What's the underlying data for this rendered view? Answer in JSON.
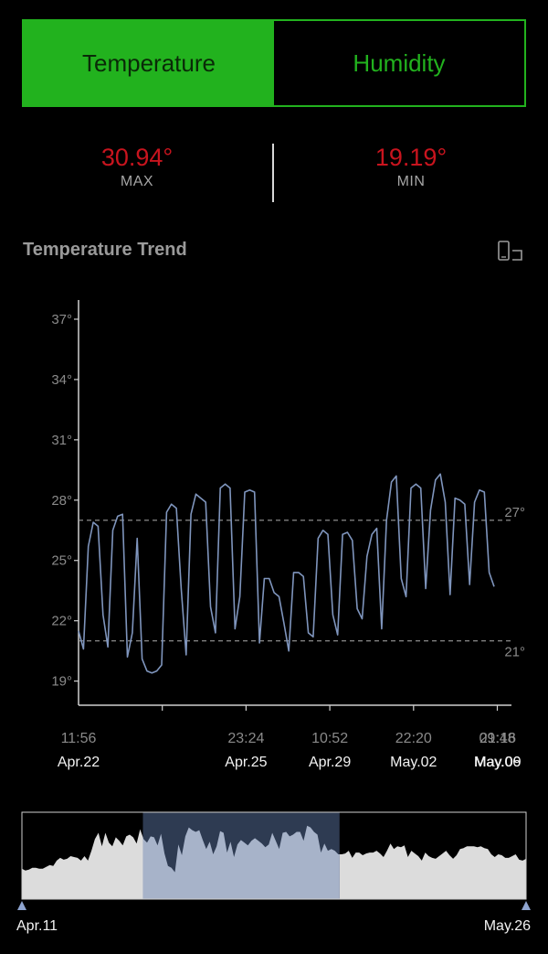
{
  "tabs": [
    {
      "label": "Temperature",
      "active": true
    },
    {
      "label": "Humidity",
      "active": false
    }
  ],
  "stats": {
    "max": {
      "value": "30.94°",
      "label": "MAX"
    },
    "min": {
      "value": "19.19°",
      "label": "MIN"
    }
  },
  "section_title": "Temperature Trend",
  "rotate_icon": "rotate-screen-icon",
  "colors": {
    "accent": "#22b21e",
    "stat_value": "#c8141e",
    "line": "#7f95bd",
    "brush_fill": "#dcdcdc",
    "brush_selected": "#2e3b52"
  },
  "chart_data": {
    "type": "line",
    "y_ticks": [
      "19°",
      "22°",
      "25°",
      "28°",
      "31°",
      "34°",
      "37°"
    ],
    "ylim": [
      17.8,
      38
    ],
    "x_ticks": [
      {
        "time": "11:56",
        "date": "Apr.22"
      },
      {
        "time": "23:24",
        "date": "Apr.25"
      },
      {
        "time": "10:52",
        "date": "Apr.29"
      },
      {
        "time": "22:20",
        "date": "May.02"
      },
      {
        "time": "09:48",
        "date": "May.06"
      },
      {
        "time": "21:16",
        "date": "May.09"
      }
    ],
    "reference_lines": [
      {
        "value": 27,
        "label": "27°"
      },
      {
        "value": 21,
        "label": "21°"
      }
    ],
    "series": [
      {
        "values": [
          21.5,
          20.6,
          25.7,
          26.9,
          26.7,
          22.3,
          20.7,
          26.5,
          27.2,
          27.3,
          20.2,
          21.4,
          26.1,
          20.1,
          19.5,
          19.4,
          19.5,
          19.8,
          27.4,
          27.8,
          27.6,
          23.6,
          20.3,
          27.3,
          28.3,
          28.1,
          27.9,
          22.7,
          21.4,
          28.6,
          28.8,
          28.6,
          21.6,
          23.2,
          28.4,
          28.5,
          28.4,
          20.9,
          24.1,
          24.1,
          23.4,
          23.2,
          21.9,
          20.5,
          24.4,
          24.4,
          24.2,
          21.4,
          21.2,
          26.1,
          26.5,
          26.3,
          22.3,
          21.3,
          26.3,
          26.4,
          26.0,
          22.6,
          22.1,
          25.2,
          26.3,
          26.6,
          21.6,
          27.0,
          28.9,
          29.2,
          24.1,
          23.2,
          28.6,
          28.8,
          28.6,
          23.6,
          27.5,
          29.0,
          29.3,
          27.9,
          23.3,
          28.1,
          28.0,
          27.8,
          23.8,
          27.9,
          28.5,
          28.4,
          24.4,
          23.7
        ]
      }
    ]
  },
  "brush": {
    "start_label": "Apr.11",
    "end_label": "May.26",
    "overview_values": [
      20.4,
      20.2,
      20.3,
      20.5,
      20.5,
      20.4,
      20.4,
      20.6,
      20.8,
      20.7,
      21.3,
      21.6,
      21.4,
      21.5,
      21.8,
      21.7,
      21.6,
      21.3,
      21.8,
      21.3,
      22.4,
      23.7,
      24.4,
      22.9,
      24.4,
      23.3,
      22.9,
      23.9,
      23.5,
      23.0,
      24.0,
      24.2,
      23.9,
      23.2,
      24.8,
      23.7,
      23.3,
      24.0,
      23.9,
      23.0,
      24.3,
      22.1,
      20.7,
      20.5,
      20.0,
      23.1,
      21.9,
      24.0,
      25.0,
      24.7,
      24.5,
      24.7,
      23.6,
      22.6,
      23.4,
      22.0,
      22.9,
      24.6,
      24.4,
      22.2,
      23.4,
      21.7,
      23.1,
      23.6,
      23.3,
      23.0,
      23.5,
      23.8,
      23.5,
      23.2,
      22.8,
      23.1,
      24.4,
      23.5,
      22.6,
      24.4,
      24.5,
      24.0,
      24.2,
      24.5,
      24.5,
      23.5,
      25.2,
      25.0,
      24.5,
      24.2,
      22.2,
      23.2,
      22.4,
      22.6,
      22.4,
      22.0,
      22.0,
      22.1,
      22.4,
      21.6,
      22.2,
      22.2,
      21.9,
      22.1,
      22.2,
      22.2,
      22.4,
      22.1,
      21.7,
      22.4,
      23.2,
      22.6,
      22.9,
      22.8,
      23.0,
      21.7,
      22.4,
      22.1,
      21.8,
      21.3,
      22.2,
      21.8,
      21.6,
      21.5,
      21.8,
      22.1,
      22.4,
      21.9,
      21.5,
      21.9,
      22.6,
      22.7,
      22.9,
      22.9,
      22.9,
      22.8,
      22.9,
      22.7,
      22.6,
      22.0,
      21.7,
      22.0,
      21.9,
      21.6,
      21.6,
      21.8,
      22.0,
      21.4,
      21.3,
      21.5
    ],
    "selection": [
      0.24,
      0.63
    ]
  }
}
